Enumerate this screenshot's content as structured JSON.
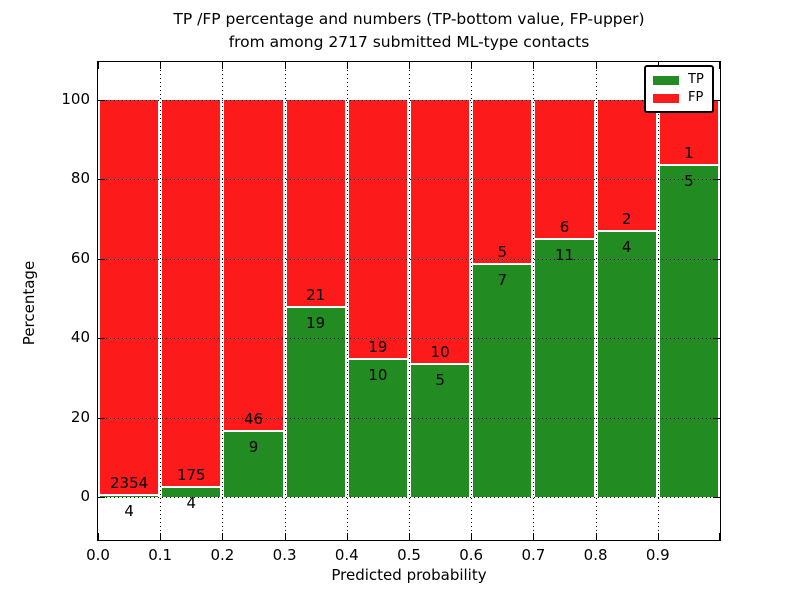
{
  "title": {
    "line1": "TP /FP percentage and numbers (TP-bottom value, FP-upper)",
    "line2": "from among 2717 submitted ML-type contacts"
  },
  "axes": {
    "ylabel": "Percentage",
    "xlabel": "Predicted probability",
    "yticks": [
      0,
      20,
      40,
      60,
      80,
      100
    ],
    "xtick_labels": [
      "0.0",
      "0.1",
      "0.2",
      "0.3",
      "0.4",
      "0.5",
      "0.6",
      "0.7",
      "0.8",
      "0.9"
    ],
    "ylim": [
      -11,
      110
    ],
    "xlim": [
      0.0,
      1.0
    ],
    "grid_style": "dotted"
  },
  "legend": {
    "position": "upper-right",
    "items": [
      {
        "label": "TP",
        "color": "#228b22"
      },
      {
        "label": "FP",
        "color": "#fd1a1a"
      }
    ]
  },
  "chart_data": {
    "type": "bar",
    "stacked": true,
    "normalized": "percent-of-bin",
    "title": "TP /FP percentage and numbers (TP-bottom value, FP-upper)\nfrom among 2717 submitted ML-type contacts",
    "xlabel": "Predicted probability",
    "ylabel": "Percentage",
    "total_contacts": 2717,
    "bin_width": 0.1,
    "bin_starts": [
      0.0,
      0.1,
      0.2,
      0.3,
      0.4,
      0.5,
      0.6,
      0.7,
      0.8,
      0.9
    ],
    "series": [
      {
        "name": "TP",
        "color": "#228b22",
        "counts": [
          4,
          4,
          9,
          19,
          10,
          5,
          7,
          11,
          4,
          5
        ]
      },
      {
        "name": "FP",
        "color": "#fd1a1a",
        "counts": [
          2354,
          175,
          46,
          21,
          19,
          10,
          5,
          6,
          2,
          1
        ]
      }
    ],
    "tp_percent": [
      0.17,
      2.23,
      16.36,
      47.5,
      34.48,
      33.33,
      58.33,
      64.71,
      66.67,
      83.33
    ],
    "ylim": [
      -11,
      110
    ],
    "xlim": [
      0.0,
      1.0
    ],
    "grid": true,
    "legend_position": "upper right"
  }
}
